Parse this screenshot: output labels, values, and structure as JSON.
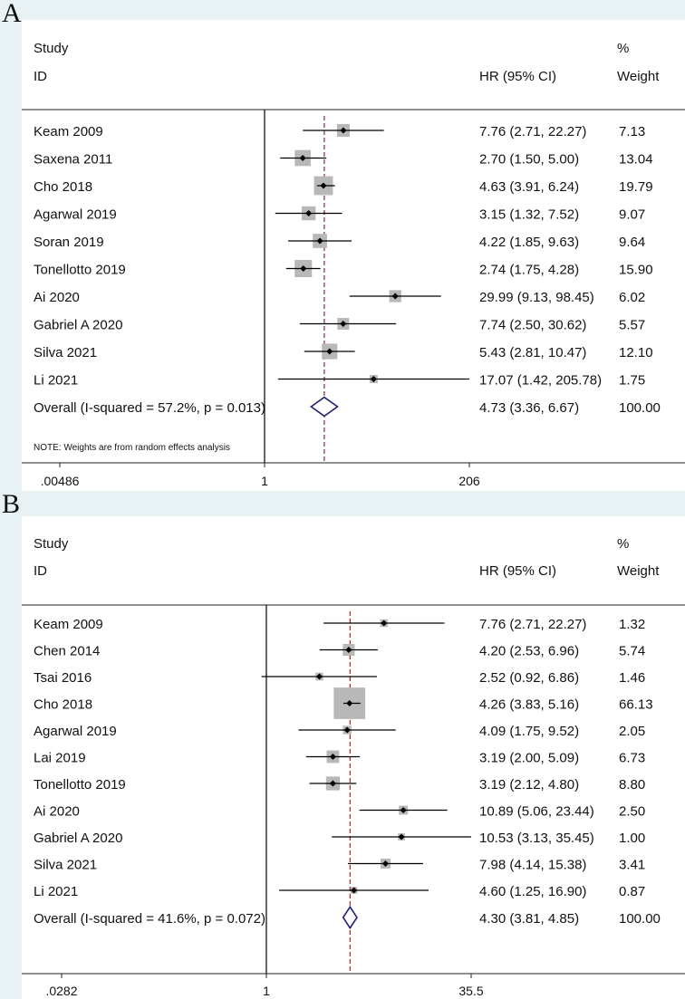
{
  "chart_data": [
    {
      "type": "forest",
      "panel": "A",
      "headers": {
        "study": "Study",
        "id": "ID",
        "effect": "HR (95% CI)",
        "pct": "%",
        "weight": "Weight"
      },
      "studies": [
        {
          "name": "Keam 2009",
          "hr": 7.76,
          "lo": 2.71,
          "hi": 22.27,
          "weight": 7.13,
          "ci_text": "7.76 (2.71, 22.27)",
          "weight_text": "7.13"
        },
        {
          "name": "Saxena 2011",
          "hr": 2.7,
          "lo": 1.5,
          "hi": 5.0,
          "weight": 13.04,
          "ci_text": "2.70 (1.50, 5.00)",
          "weight_text": "13.04"
        },
        {
          "name": "Cho 2018",
          "hr": 4.63,
          "lo": 3.91,
          "hi": 6.24,
          "weight": 19.79,
          "ci_text": "4.63 (3.91, 6.24)",
          "weight_text": "19.79"
        },
        {
          "name": "Agarwal 2019",
          "hr": 3.15,
          "lo": 1.32,
          "hi": 7.52,
          "weight": 9.07,
          "ci_text": "3.15 (1.32, 7.52)",
          "weight_text": "9.07"
        },
        {
          "name": "Soran 2019",
          "hr": 4.22,
          "lo": 1.85,
          "hi": 9.63,
          "weight": 9.64,
          "ci_text": "4.22 (1.85, 9.63)",
          "weight_text": "9.64"
        },
        {
          "name": "Tonellotto 2019",
          "hr": 2.74,
          "lo": 1.75,
          "hi": 4.28,
          "weight": 15.9,
          "ci_text": "2.74 (1.75, 4.28)",
          "weight_text": "15.90"
        },
        {
          "name": "Ai 2020",
          "hr": 29.99,
          "lo": 9.13,
          "hi": 98.45,
          "weight": 6.02,
          "ci_text": "29.99 (9.13, 98.45)",
          "weight_text": "6.02"
        },
        {
          "name": "Gabriel A 2020",
          "hr": 7.74,
          "lo": 2.5,
          "hi": 30.62,
          "weight": 5.57,
          "ci_text": "7.74 (2.50, 30.62)",
          "weight_text": "5.57"
        },
        {
          "name": "Silva 2021",
          "hr": 5.43,
          "lo": 2.81,
          "hi": 10.47,
          "weight": 12.1,
          "ci_text": "5.43 (2.81, 10.47)",
          "weight_text": "12.10"
        },
        {
          "name": "Li 2021",
          "hr": 17.07,
          "lo": 1.42,
          "hi": 205.78,
          "weight": 1.75,
          "ci_text": "17.07 (1.42, 205.78)",
          "weight_text": "1.75"
        }
      ],
      "overall": {
        "label": "Overall  (I-squared = 57.2%, p = 0.013)",
        "hr": 4.73,
        "lo": 3.36,
        "hi": 6.67,
        "ci_text": "4.73 (3.36, 6.67)",
        "weight_text": "100.00"
      },
      "note": "NOTE: Weights are from random effects analysis",
      "x_axis": {
        "scale": "log",
        "min": 0.00486,
        "max": 206,
        "ticks": [
          0.00486,
          1,
          206
        ],
        "tick_labels": [
          ".00486",
          "1",
          "206"
        ]
      }
    },
    {
      "type": "forest",
      "panel": "B",
      "headers": {
        "study": "Study",
        "id": "ID",
        "effect": "HR (95% CI)",
        "pct": "%",
        "weight": "Weight"
      },
      "studies": [
        {
          "name": "Keam 2009",
          "hr": 7.76,
          "lo": 2.71,
          "hi": 22.27,
          "weight": 1.32,
          "ci_text": "7.76 (2.71, 22.27)",
          "weight_text": "1.32"
        },
        {
          "name": "Chen 2014",
          "hr": 4.2,
          "lo": 2.53,
          "hi": 6.96,
          "weight": 5.74,
          "ci_text": "4.20 (2.53, 6.96)",
          "weight_text": "5.74"
        },
        {
          "name": "Tsai 2016",
          "hr": 2.52,
          "lo": 0.92,
          "hi": 6.86,
          "weight": 1.46,
          "ci_text": "2.52 (0.92, 6.86)",
          "weight_text": "1.46"
        },
        {
          "name": "Cho 2018",
          "hr": 4.26,
          "lo": 3.83,
          "hi": 5.16,
          "weight": 66.13,
          "ci_text": "4.26 (3.83, 5.16)",
          "weight_text": "66.13"
        },
        {
          "name": "Agarwal 2019",
          "hr": 4.09,
          "lo": 1.75,
          "hi": 9.52,
          "weight": 2.05,
          "ci_text": "4.09 (1.75, 9.52)",
          "weight_text": "2.05"
        },
        {
          "name": "Lai 2019",
          "hr": 3.19,
          "lo": 2.0,
          "hi": 5.09,
          "weight": 6.73,
          "ci_text": "3.19 (2.00, 5.09)",
          "weight_text": "6.73"
        },
        {
          "name": "Tonellotto 2019",
          "hr": 3.19,
          "lo": 2.12,
          "hi": 4.8,
          "weight": 8.8,
          "ci_text": "3.19 (2.12, 4.80)",
          "weight_text": "8.80"
        },
        {
          "name": "Ai 2020",
          "hr": 10.89,
          "lo": 5.06,
          "hi": 23.44,
          "weight": 2.5,
          "ci_text": "10.89 (5.06, 23.44)",
          "weight_text": "2.50"
        },
        {
          "name": "Gabriel A 2020",
          "hr": 10.53,
          "lo": 3.13,
          "hi": 35.45,
          "weight": 1.0,
          "ci_text": "10.53 (3.13, 35.45)",
          "weight_text": "1.00"
        },
        {
          "name": "Silva 2021",
          "hr": 7.98,
          "lo": 4.14,
          "hi": 15.38,
          "weight": 3.41,
          "ci_text": "7.98 (4.14, 15.38)",
          "weight_text": "3.41"
        },
        {
          "name": "Li 2021",
          "hr": 4.6,
          "lo": 1.25,
          "hi": 16.9,
          "weight": 0.87,
          "ci_text": "4.60 (1.25, 16.90)",
          "weight_text": "0.87"
        }
      ],
      "overall": {
        "label": "Overall  (I-squared = 41.6%, p = 0.072)",
        "hr": 4.3,
        "lo": 3.81,
        "hi": 4.85,
        "ci_text": "4.30 (3.81, 4.85)",
        "weight_text": "100.00"
      },
      "note": "",
      "x_axis": {
        "scale": "log",
        "min": 0.0282,
        "max": 35.5,
        "ticks": [
          0.0282,
          1,
          35.5
        ],
        "tick_labels": [
          ".0282",
          "1",
          "35.5"
        ]
      }
    }
  ],
  "colors": {
    "box": "#b8b8b8",
    "diamond": "#1f1f7a",
    "ref_line": "#8b2a2a",
    "line": "#000000",
    "panel_bg": "#e8f1f3"
  }
}
